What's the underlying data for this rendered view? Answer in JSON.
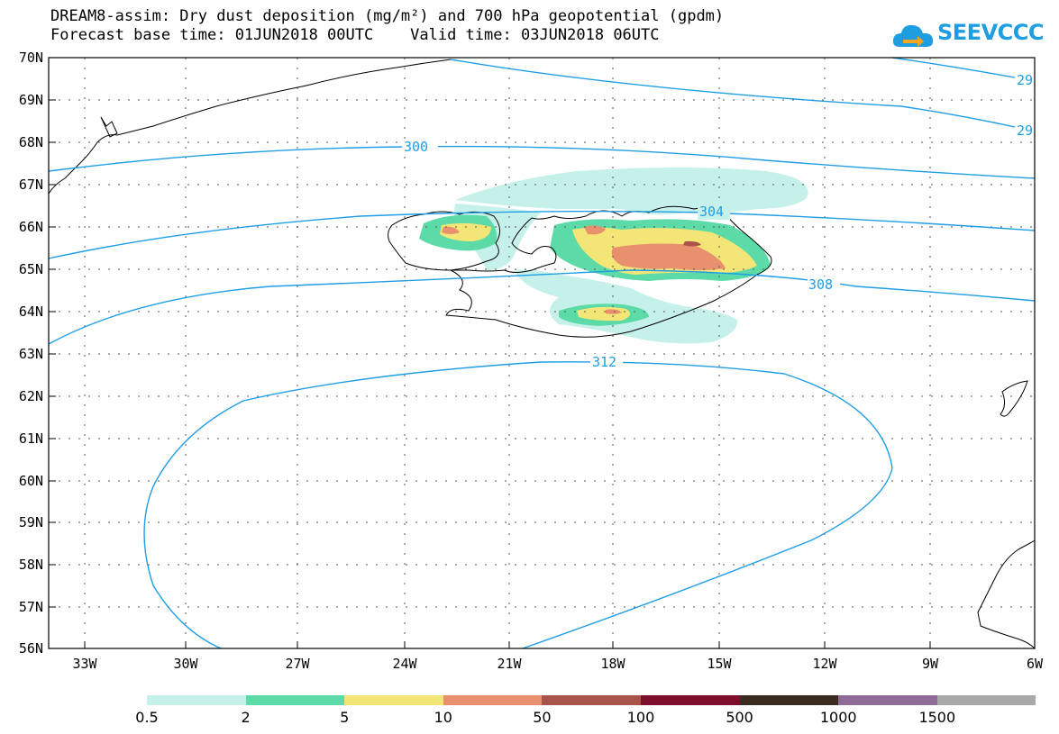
{
  "header": {
    "title": "DREAM8-assim: Dry dust deposition (mg/m²) and 700 hPa geopotential (gpdm)",
    "subtitle": "Forecast base time: 01JUN2018 00UTC    Valid time: 03JUN2018 06UTC",
    "logo_text": "SEEVCCC"
  },
  "map": {
    "lat_labels": [
      "70N",
      "69N",
      "68N",
      "67N",
      "66N",
      "65N",
      "64N",
      "63N",
      "62N",
      "61N",
      "60N",
      "59N",
      "58N",
      "57N",
      "56N"
    ],
    "lon_labels": [
      "33W",
      "30W",
      "27W",
      "24W",
      "21W",
      "18W",
      "15W",
      "12W",
      "9W",
      "6W"
    ],
    "contour_labels": [
      "300",
      "304",
      "308",
      "312",
      "29",
      "29"
    ],
    "contour_color": "#1f9ee6"
  },
  "legend": {
    "labels": [
      "0.5",
      "2",
      "5",
      "10",
      "50",
      "100",
      "500",
      "1000",
      "1500"
    ],
    "colors": [
      "#c6f1ea",
      "#5cdaa8",
      "#f3e676",
      "#e9916e",
      "#a9544b",
      "#7e0f2c",
      "#3b2b21",
      "#8e6c97",
      "#a9a9a9"
    ]
  }
}
